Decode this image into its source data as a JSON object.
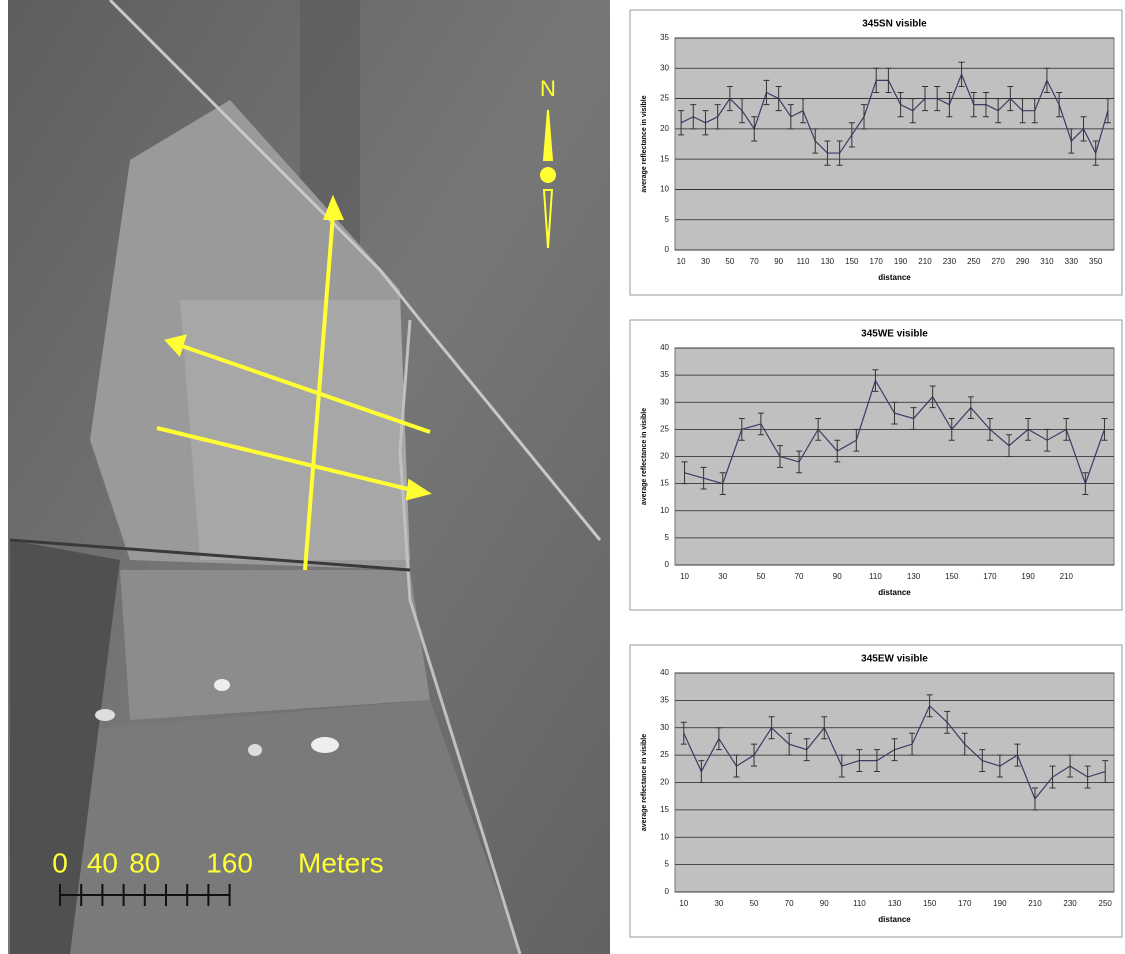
{
  "map": {
    "north": "N",
    "scale": [
      0,
      40,
      80,
      160
    ],
    "unit": "Meters"
  },
  "chart_data": [
    {
      "type": "line",
      "title": "345SN visible",
      "y_label": "average reflectance in visible",
      "x_label": "distance",
      "categories": [
        "10",
        null,
        "30",
        null,
        "50",
        null,
        "70",
        null,
        "90",
        null,
        "110",
        null,
        "130",
        null,
        "150",
        null,
        "170",
        null,
        "190",
        null,
        "210",
        null,
        "230",
        null,
        "250",
        null,
        "270",
        null,
        "290",
        null,
        "310",
        null,
        "330",
        null,
        "350",
        null
      ],
      "values": [
        21,
        22,
        21,
        22,
        25,
        23,
        20,
        26,
        25,
        22,
        23,
        18,
        16,
        16,
        19,
        22,
        28,
        28,
        24,
        23,
        25,
        25,
        24,
        29,
        24,
        24,
        23,
        25,
        23,
        23,
        28,
        24,
        18,
        20,
        16,
        23
      ],
      "error": 2,
      "color": "#3c3c66",
      "ylim": [
        0,
        35
      ],
      "yticks": [
        0,
        5,
        10,
        15,
        20,
        25,
        30,
        35
      ],
      "grid": true
    },
    {
      "type": "line",
      "title": "345WE visible",
      "y_label": "average reflectance in visible",
      "x_label": "distance",
      "categories": [
        "10",
        null,
        "30",
        null,
        "50",
        null,
        "70",
        null,
        "90",
        null,
        "110",
        null,
        "130",
        null,
        "150",
        null,
        "170",
        null,
        "190",
        null,
        "210",
        null,
        null
      ],
      "values": [
        17,
        16,
        15,
        25,
        26,
        20,
        19,
        25,
        21,
        23,
        34,
        28,
        27,
        31,
        25,
        29,
        25,
        22,
        25,
        23,
        25,
        15,
        25
      ],
      "error": 2,
      "color": "#3c3c66",
      "ylim": [
        0,
        40
      ],
      "yticks": [
        0,
        5,
        10,
        15,
        20,
        25,
        30,
        35,
        40
      ],
      "grid": true
    },
    {
      "type": "line",
      "title": "345EW visible",
      "y_label": "average reflectance in visible",
      "x_label": "distance",
      "categories": [
        "10",
        null,
        "30",
        null,
        "50",
        null,
        "70",
        null,
        "90",
        null,
        "110",
        null,
        "130",
        null,
        "150",
        null,
        "170",
        null,
        "190",
        null,
        "210",
        null,
        "230",
        null,
        "250"
      ],
      "values": [
        29,
        22,
        28,
        23,
        25,
        30,
        27,
        26,
        30,
        23,
        24,
        24,
        26,
        27,
        34,
        31,
        27,
        24,
        23,
        25,
        17,
        21,
        23,
        21,
        22
      ],
      "error": 2,
      "color": "#3c3c66",
      "ylim": [
        0,
        40
      ],
      "yticks": [
        0,
        5,
        10,
        15,
        20,
        25,
        30,
        35,
        40
      ],
      "grid": true
    }
  ]
}
